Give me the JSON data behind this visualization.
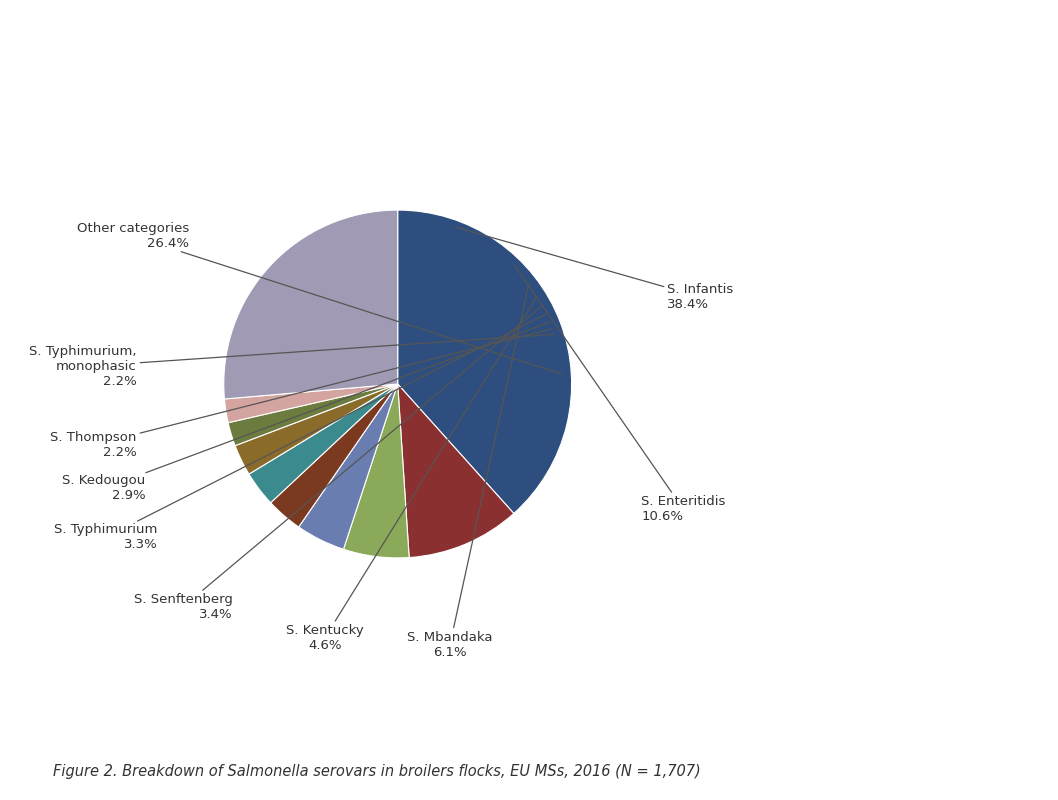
{
  "slices": [
    {
      "label": "S. Infantis",
      "pct": "38.4%",
      "value": 38.4,
      "color": "#2d4e7e"
    },
    {
      "label": "S. Enteritidis",
      "pct": "10.6%",
      "value": 10.6,
      "color": "#8b3030"
    },
    {
      "label": "S. Mbandaka",
      "pct": "6.1%",
      "value": 6.1,
      "color": "#8aaa5a"
    },
    {
      "label": "S. Kentucky",
      "pct": "4.6%",
      "value": 4.6,
      "color": "#6a7db0"
    },
    {
      "label": "S. Senftenberg",
      "pct": "3.4%",
      "value": 3.4,
      "color": "#7b3a20"
    },
    {
      "label": "S. Typhimurium",
      "pct": "3.3%",
      "value": 3.3,
      "color": "#3a8a8e"
    },
    {
      "label": "S. Kedougou",
      "pct": "2.9%",
      "value": 2.9,
      "color": "#8b6b2a"
    },
    {
      "label": "S. Thompson",
      "pct": "2.2%",
      "value": 2.2,
      "color": "#6b7c3e"
    },
    {
      "label": "S. Typhimurium,\nmonophasic",
      "pct": "2.2%",
      "value": 2.2,
      "color": "#d4a5a0"
    },
    {
      "label": "Other categories",
      "pct": "26.4%",
      "value": 26.4,
      "color": "#a09ab5"
    }
  ],
  "figure_caption": "Figure 2. Breakdown of Salmonella serovars in broilers flocks, EU MSs, 2016 (N = 1,707)",
  "bg_color": "#ffffff",
  "start_angle": 90
}
